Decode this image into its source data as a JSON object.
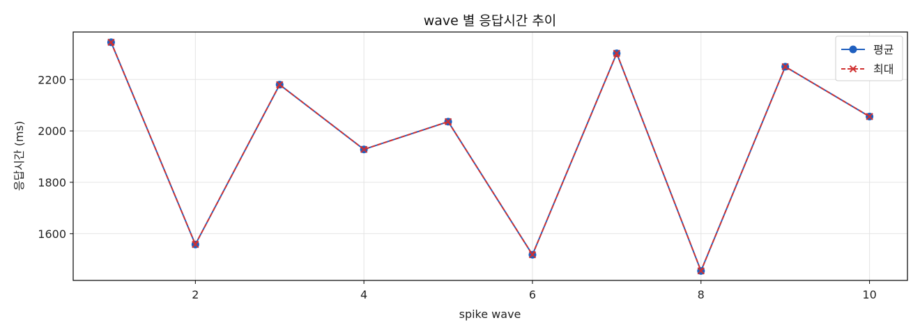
{
  "chart_data": {
    "type": "line",
    "title": "wave 별 응답시간 추이",
    "xlabel": "spike wave",
    "ylabel": "응답시간 (ms)",
    "x": [
      1,
      2,
      3,
      4,
      5,
      6,
      7,
      8,
      9,
      10
    ],
    "x_ticks": [
      2,
      4,
      6,
      8,
      10
    ],
    "y_ticks": [
      1600,
      1800,
      2000,
      2200
    ],
    "xlim": [
      0.55,
      10.45
    ],
    "ylim": [
      1418,
      2385
    ],
    "grid": true,
    "legend_position": "top-right",
    "series": [
      {
        "name": "평균",
        "values": [
          2345,
          1558,
          2180,
          1928,
          2036,
          1518,
          2302,
          1455,
          2250,
          2056
        ],
        "color": "#1f5fbf",
        "line_style": "solid",
        "marker": "circle"
      },
      {
        "name": "최대",
        "values": [
          2345,
          1558,
          2180,
          1928,
          2036,
          1518,
          2302,
          1455,
          2250,
          2056
        ],
        "color": "#d03030",
        "line_style": "dashed",
        "marker": "x"
      }
    ]
  }
}
